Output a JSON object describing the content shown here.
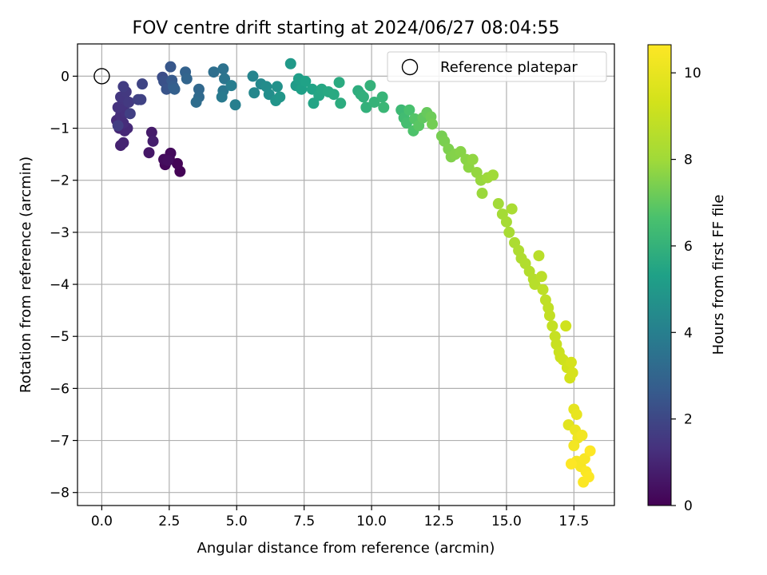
{
  "chart_data": {
    "type": "scatter",
    "title": "FOV centre drift starting at 2024/06/27 08:04:55",
    "xlabel": "Angular distance from reference (arcmin)",
    "ylabel": "Rotation from reference (arcmin)",
    "xlim": [
      -0.9,
      19.0
    ],
    "ylim": [
      -8.25,
      0.62
    ],
    "xticks": [
      0.0,
      2.5,
      5.0,
      7.5,
      10.0,
      12.5,
      15.0,
      17.5
    ],
    "xtick_labels": [
      "0.0",
      "2.5",
      "5.0",
      "7.5",
      "10.0",
      "12.5",
      "15.0",
      "17.5"
    ],
    "yticks": [
      0,
      -1,
      -2,
      -3,
      -4,
      -5,
      -6,
      -7,
      -8
    ],
    "ytick_labels": [
      "0",
      "−1",
      "−2",
      "−3",
      "−4",
      "−5",
      "−6",
      "−7",
      "−8"
    ],
    "grid": true,
    "legend": {
      "position": "upper-right",
      "entries": [
        {
          "label": "Reference platepar",
          "marker": "open-circle"
        }
      ]
    },
    "reference_point": {
      "x": 0.0,
      "y": 0.0
    },
    "colorbar": {
      "label": "Hours from first FF file",
      "colormap": "viridis",
      "range": [
        0,
        10.65
      ],
      "ticks": [
        0,
        2,
        4,
        6,
        8,
        10
      ],
      "tick_labels": [
        "0",
        "2",
        "4",
        "6",
        "8",
        "10"
      ]
    },
    "series": [
      {
        "points": [
          [
            2.9,
            -1.83,
            0.05
          ],
          [
            2.8,
            -1.68,
            0.1
          ],
          [
            2.35,
            -1.7,
            0.15
          ],
          [
            2.5,
            -1.58,
            0.2
          ],
          [
            2.55,
            -1.48,
            0.25
          ],
          [
            2.3,
            -1.6,
            0.3
          ],
          [
            2.45,
            -1.62,
            0.35
          ],
          [
            1.75,
            -1.47,
            0.6
          ],
          [
            1.85,
            -1.08,
            0.7
          ],
          [
            1.9,
            -1.25,
            0.8
          ],
          [
            0.7,
            -1.33,
            0.9
          ],
          [
            0.8,
            -1.28,
            0.95
          ],
          [
            0.65,
            -1.0,
            1.0
          ],
          [
            0.85,
            -1.05,
            1.05
          ],
          [
            0.95,
            -1.0,
            1.1
          ],
          [
            0.55,
            -0.85,
            1.15
          ],
          [
            0.8,
            -0.9,
            1.2
          ],
          [
            0.7,
            -0.75,
            1.25
          ],
          [
            0.9,
            -0.7,
            1.3
          ],
          [
            0.6,
            -0.6,
            1.35
          ],
          [
            0.75,
            -0.55,
            1.4
          ],
          [
            0.85,
            -0.45,
            1.45
          ],
          [
            0.7,
            -0.4,
            1.5
          ],
          [
            0.9,
            -0.3,
            1.55
          ],
          [
            1.0,
            -0.5,
            1.6
          ],
          [
            0.8,
            -0.2,
            1.65
          ],
          [
            0.6,
            -0.95,
            1.7
          ],
          [
            1.05,
            -0.72,
            1.75
          ],
          [
            1.35,
            -0.45,
            1.8
          ],
          [
            1.45,
            -0.45,
            1.85
          ],
          [
            1.5,
            -0.15,
            1.9
          ],
          [
            2.25,
            -0.02,
            2.2
          ],
          [
            2.3,
            -0.1,
            2.3
          ],
          [
            2.4,
            -0.25,
            2.4
          ],
          [
            2.55,
            0.18,
            2.5
          ],
          [
            2.6,
            -0.08,
            2.6
          ],
          [
            2.65,
            -0.2,
            2.7
          ],
          [
            2.7,
            -0.25,
            2.8
          ],
          [
            3.1,
            0.08,
            2.9
          ],
          [
            3.15,
            -0.05,
            3.0
          ],
          [
            3.6,
            -0.25,
            3.1
          ],
          [
            3.6,
            -0.4,
            3.2
          ],
          [
            3.5,
            -0.5,
            3.3
          ],
          [
            4.15,
            0.08,
            3.4
          ],
          [
            4.5,
            0.14,
            3.5
          ],
          [
            4.55,
            -0.05,
            3.6
          ],
          [
            4.5,
            -0.28,
            3.7
          ],
          [
            4.45,
            -0.4,
            3.8
          ],
          [
            4.8,
            -0.18,
            3.9
          ],
          [
            4.95,
            -0.55,
            4.0
          ],
          [
            5.6,
            0.0,
            4.2
          ],
          [
            5.65,
            -0.32,
            4.3
          ],
          [
            5.9,
            -0.15,
            4.4
          ],
          [
            6.1,
            -0.2,
            4.5
          ],
          [
            6.2,
            -0.35,
            4.6
          ],
          [
            6.5,
            -0.2,
            4.7
          ],
          [
            6.45,
            -0.47,
            4.8
          ],
          [
            6.6,
            -0.4,
            4.9
          ],
          [
            7.0,
            0.24,
            5.0
          ],
          [
            7.2,
            -0.18,
            5.1
          ],
          [
            7.3,
            -0.05,
            5.2
          ],
          [
            7.4,
            -0.25,
            5.3
          ],
          [
            7.55,
            -0.1,
            5.35
          ],
          [
            7.8,
            -0.25,
            5.4
          ],
          [
            7.85,
            -0.52,
            5.45
          ],
          [
            8.05,
            -0.37,
            5.5
          ],
          [
            8.15,
            -0.25,
            5.55
          ],
          [
            8.4,
            -0.3,
            5.6
          ],
          [
            8.6,
            -0.35,
            5.65
          ],
          [
            8.8,
            -0.12,
            5.7
          ],
          [
            8.85,
            -0.52,
            5.75
          ],
          [
            9.5,
            -0.28,
            5.8
          ],
          [
            9.6,
            -0.35,
            5.85
          ],
          [
            9.7,
            -0.4,
            5.9
          ],
          [
            9.8,
            -0.6,
            5.95
          ],
          [
            9.95,
            -0.18,
            6.0
          ],
          [
            10.1,
            -0.5,
            6.05
          ],
          [
            10.4,
            -0.4,
            6.1
          ],
          [
            10.45,
            -0.6,
            6.2
          ],
          [
            11.1,
            -0.65,
            6.3
          ],
          [
            11.2,
            -0.8,
            6.4
          ],
          [
            11.3,
            -0.9,
            6.5
          ],
          [
            11.4,
            -0.65,
            6.6
          ],
          [
            11.55,
            -1.05,
            6.7
          ],
          [
            11.6,
            -0.82,
            6.8
          ],
          [
            11.75,
            -0.95,
            6.9
          ],
          [
            11.9,
            -0.8,
            7.0
          ],
          [
            12.05,
            -0.7,
            7.1
          ],
          [
            12.2,
            -0.78,
            7.2
          ],
          [
            12.25,
            -0.92,
            7.3
          ],
          [
            12.6,
            -1.15,
            7.35
          ],
          [
            12.7,
            -1.25,
            7.4
          ],
          [
            12.85,
            -1.4,
            7.45
          ],
          [
            12.95,
            -1.55,
            7.5
          ],
          [
            13.1,
            -1.5,
            7.55
          ],
          [
            13.3,
            -1.45,
            7.6
          ],
          [
            13.5,
            -1.6,
            7.65
          ],
          [
            13.6,
            -1.75,
            7.7
          ],
          [
            13.75,
            -1.6,
            7.75
          ],
          [
            13.9,
            -1.85,
            7.8
          ],
          [
            14.05,
            -2.0,
            7.85
          ],
          [
            14.1,
            -2.25,
            7.9
          ],
          [
            14.3,
            -1.95,
            7.95
          ],
          [
            14.5,
            -1.9,
            8.0
          ],
          [
            14.7,
            -2.45,
            8.05
          ],
          [
            14.85,
            -2.65,
            8.1
          ],
          [
            15.0,
            -2.8,
            8.15
          ],
          [
            15.1,
            -3.0,
            8.2
          ],
          [
            15.2,
            -2.55,
            8.25
          ],
          [
            15.3,
            -3.2,
            8.3
          ],
          [
            15.45,
            -3.35,
            8.35
          ],
          [
            15.55,
            -3.5,
            8.4
          ],
          [
            15.7,
            -3.6,
            8.45
          ],
          [
            15.85,
            -3.75,
            8.5
          ],
          [
            16.0,
            -3.9,
            8.55
          ],
          [
            16.05,
            -4.0,
            8.6
          ],
          [
            16.2,
            -3.45,
            8.65
          ],
          [
            16.3,
            -3.85,
            8.7
          ],
          [
            16.35,
            -4.1,
            8.75
          ],
          [
            16.45,
            -4.3,
            8.8
          ],
          [
            16.55,
            -4.45,
            8.85
          ],
          [
            16.6,
            -4.6,
            8.9
          ],
          [
            16.7,
            -4.8,
            8.95
          ],
          [
            16.8,
            -5.0,
            9.0
          ],
          [
            16.85,
            -5.15,
            9.05
          ],
          [
            16.95,
            -5.3,
            9.1
          ],
          [
            17.0,
            -5.4,
            9.15
          ],
          [
            17.1,
            -5.45,
            9.2
          ],
          [
            17.2,
            -4.8,
            9.25
          ],
          [
            17.25,
            -5.6,
            9.3
          ],
          [
            17.35,
            -5.8,
            9.35
          ],
          [
            17.4,
            -5.5,
            9.4
          ],
          [
            17.45,
            -5.7,
            9.45
          ],
          [
            17.3,
            -6.7,
            9.8
          ],
          [
            17.5,
            -6.4,
            9.9
          ],
          [
            17.6,
            -6.5,
            10.0
          ],
          [
            17.55,
            -6.8,
            10.1
          ],
          [
            17.65,
            -6.95,
            10.2
          ],
          [
            17.8,
            -6.9,
            10.3
          ],
          [
            17.5,
            -7.1,
            10.35
          ],
          [
            17.6,
            -7.4,
            10.4
          ],
          [
            17.75,
            -7.5,
            10.45
          ],
          [
            17.9,
            -7.35,
            10.5
          ],
          [
            17.95,
            -7.6,
            10.55
          ],
          [
            17.85,
            -7.8,
            10.6
          ],
          [
            18.05,
            -7.7,
            10.62
          ],
          [
            18.1,
            -7.2,
            10.64
          ],
          [
            17.4,
            -7.45,
            10.65
          ]
        ]
      }
    ]
  }
}
